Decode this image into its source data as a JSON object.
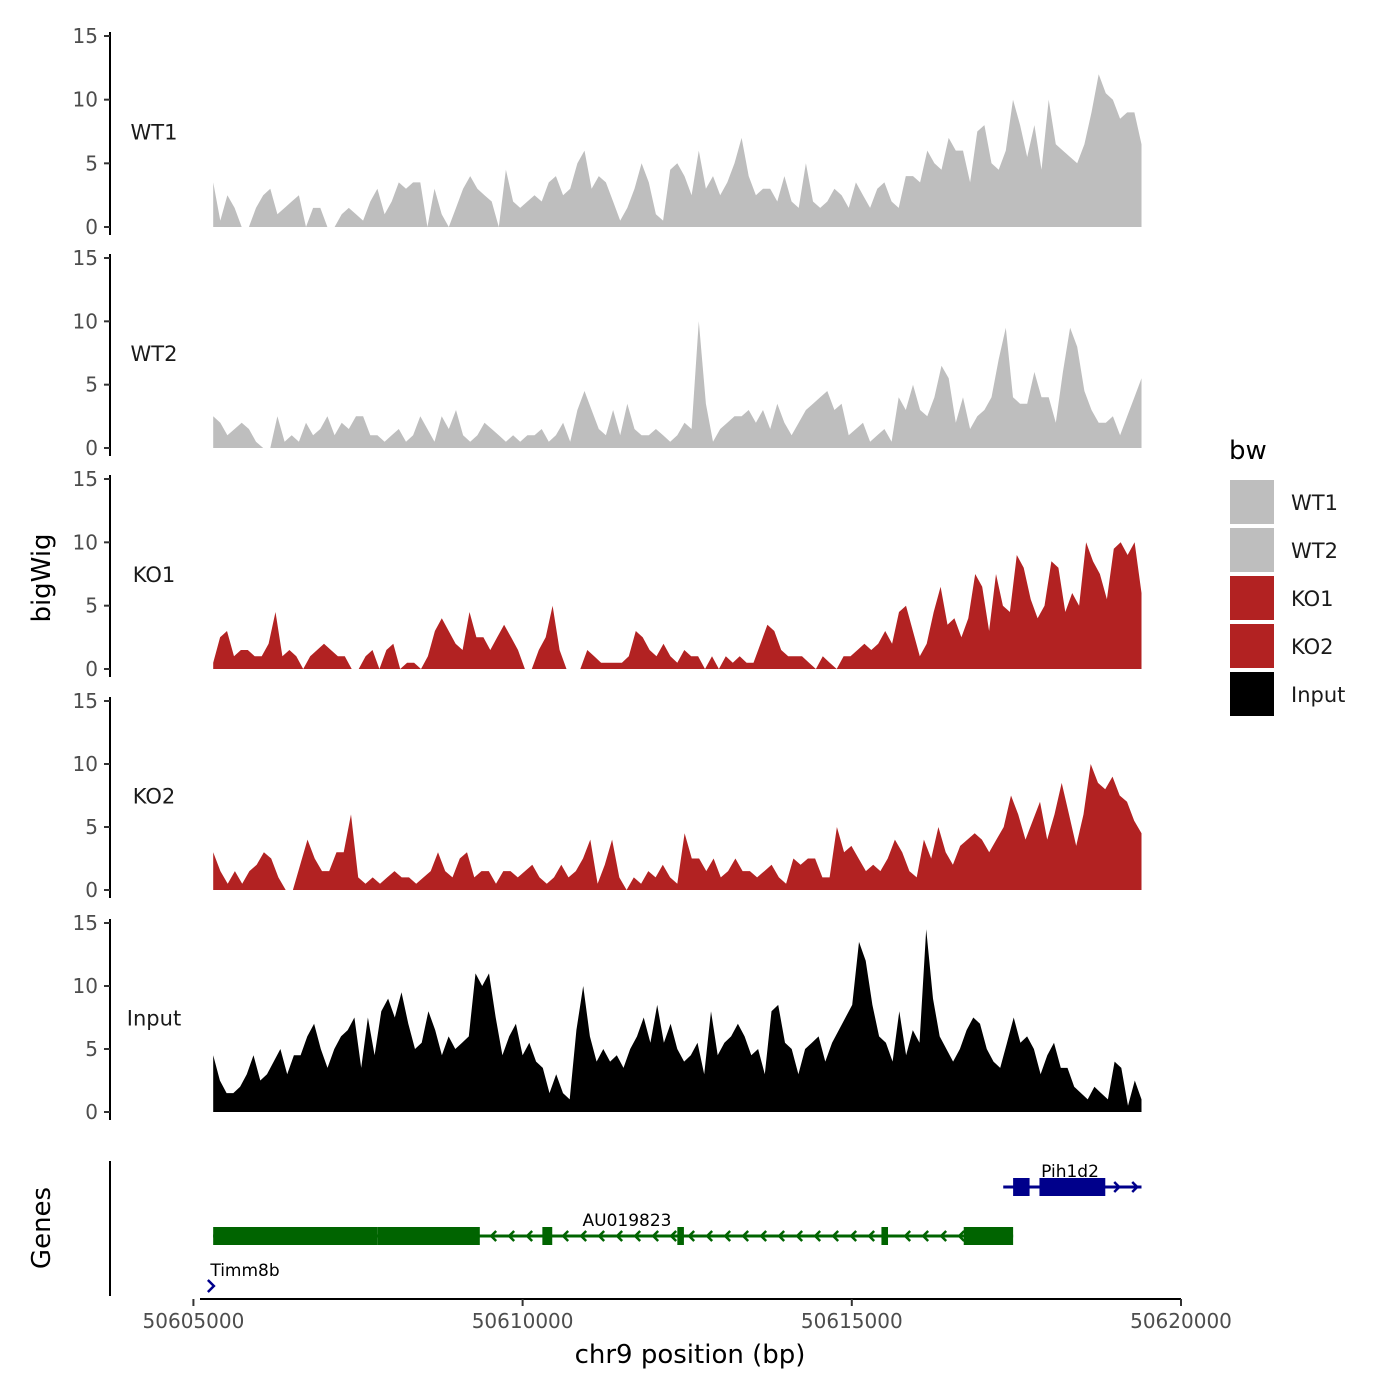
{
  "chart_data": {
    "type": "area",
    "ylabel_tracks": "bigWig",
    "ylabel_genes": "Genes",
    "xlabel": "chr9 position (bp)",
    "xlim": [
      50605100,
      50620000
    ],
    "x_range_data": [
      50605300,
      50619400
    ],
    "ylim": [
      0,
      15
    ],
    "y_ticks": [
      0,
      5,
      10,
      15
    ],
    "y_tick_labels": [
      "0",
      "5",
      "10",
      "15"
    ],
    "x_ticks": [
      50605000,
      50610000,
      50615000,
      50620000
    ],
    "x_tick_labels": [
      "50605000",
      "50610000",
      "50615000",
      "50620000"
    ],
    "legend": {
      "title": "bw",
      "position": "right",
      "entries": [
        {
          "name": "WT1",
          "color": "#BEBEBE"
        },
        {
          "name": "WT2",
          "color": "#BEBEBE"
        },
        {
          "name": "KO1",
          "color": "#B22222"
        },
        {
          "name": "KO2",
          "color": "#B22222"
        },
        {
          "name": "Input",
          "color": "#000000"
        }
      ]
    },
    "series": [
      {
        "name": "WT1",
        "color": "#BEBEBE",
        "values": [
          3.5,
          0.5,
          2.5,
          1.5,
          0,
          0,
          1.5,
          2.5,
          3,
          1,
          1.5,
          2,
          2.5,
          0,
          1.5,
          1.5,
          0,
          0,
          1,
          1.5,
          1,
          0.5,
          2,
          3,
          1,
          2,
          3.5,
          3,
          3.5,
          3.5,
          0,
          3,
          1,
          0,
          1.5,
          3,
          4,
          3,
          2.5,
          2,
          0,
          4.5,
          2,
          1.5,
          2,
          2.5,
          2,
          3.5,
          4,
          2.5,
          3,
          5,
          6,
          3,
          4,
          3.5,
          2,
          0.5,
          1.5,
          3,
          5,
          3.5,
          1,
          0.5,
          4.5,
          5,
          4,
          2.5,
          6,
          3,
          4,
          2.5,
          3.5,
          5,
          7,
          4,
          2.5,
          3,
          3,
          2,
          4,
          2,
          1.5,
          5,
          2,
          1.5,
          2,
          3,
          2.5,
          1.5,
          3.5,
          2.5,
          1.5,
          3,
          3.5,
          2,
          1.5,
          4,
          4,
          3.5,
          6,
          5,
          4.5,
          7,
          6,
          6,
          3.5,
          7.5,
          8,
          5,
          4.5,
          6,
          10,
          8,
          5.5,
          8,
          4.5,
          10,
          6.5,
          6,
          5.5,
          5,
          6.5,
          9,
          12,
          10.5,
          10,
          8.5,
          9,
          9,
          6.5
        ]
      },
      {
        "name": "WT2",
        "color": "#BEBEBE",
        "values": [
          2.5,
          2,
          1,
          1.5,
          2,
          1.5,
          0.5,
          0,
          0,
          2.5,
          0.5,
          1,
          0.5,
          2,
          1,
          1.5,
          2.5,
          1,
          2,
          1.5,
          2.5,
          2.5,
          1,
          1,
          0.5,
          1,
          1.5,
          0.5,
          1,
          2.5,
          1.5,
          0.5,
          2.5,
          1.5,
          3,
          1,
          0.5,
          1,
          2,
          1.5,
          1,
          0.5,
          1,
          0.5,
          1,
          1,
          1.5,
          0.5,
          1,
          2,
          0.5,
          3,
          4.5,
          3,
          1.5,
          1,
          3,
          1,
          3.5,
          1.5,
          1,
          1,
          1.5,
          1,
          0.5,
          1,
          2,
          1.5,
          10,
          3.5,
          0.5,
          1.5,
          2,
          2.5,
          2.5,
          3,
          2,
          3,
          1.5,
          3.5,
          2,
          1,
          2,
          3,
          3.5,
          4,
          4.5,
          3,
          3.5,
          1,
          1.5,
          2,
          0.5,
          1,
          1.5,
          0.5,
          4,
          3,
          5,
          3,
          2.5,
          4,
          6.5,
          5.5,
          2,
          4,
          1.5,
          2.5,
          3,
          4,
          7,
          9.5,
          4,
          3.5,
          3.5,
          6,
          4,
          4,
          2,
          6,
          9.5,
          8,
          4.5,
          3,
          2,
          2,
          2.5,
          1,
          2.5,
          4,
          5.5
        ]
      },
      {
        "name": "KO1",
        "color": "#B22222",
        "values": [
          0.5,
          2.5,
          3,
          1,
          1.5,
          1.5,
          1,
          1,
          2,
          4.5,
          1,
          1.5,
          1,
          0,
          1,
          1.5,
          2,
          1.5,
          1,
          1,
          0,
          0,
          1,
          1.5,
          0,
          1.5,
          2,
          0,
          0.5,
          0.5,
          0,
          1,
          3,
          4,
          3,
          2,
          1.5,
          4.5,
          2.5,
          2.5,
          1.5,
          2.5,
          3.5,
          2.5,
          1.5,
          0,
          0,
          1.5,
          2.5,
          5,
          1.5,
          0,
          0,
          0,
          1.5,
          1,
          0.5,
          0.5,
          0.5,
          0.5,
          1,
          3,
          2.5,
          1.5,
          1,
          2,
          1,
          0.5,
          1.5,
          1,
          1,
          0,
          1,
          0,
          1,
          0.5,
          1,
          0.5,
          0.5,
          2,
          3.5,
          3,
          1.5,
          1,
          1,
          1,
          0.5,
          0,
          1,
          0.5,
          0,
          1,
          1,
          1.5,
          2,
          1.5,
          2,
          3,
          2,
          4.5,
          5,
          3,
          1,
          2,
          4.5,
          6.5,
          3.5,
          4,
          2.5,
          4,
          7.5,
          6.5,
          3,
          7.5,
          5,
          4.5,
          9,
          8,
          5.5,
          4,
          5,
          8.5,
          8,
          4.5,
          6,
          5,
          10,
          8.5,
          7.5,
          5.5,
          9.5,
          10,
          9,
          10,
          6
        ]
      },
      {
        "name": "KO2",
        "color": "#B22222",
        "values": [
          3,
          1.5,
          0.5,
          1.5,
          0.5,
          1.5,
          2,
          3,
          2.5,
          1,
          0,
          0,
          2,
          4,
          2.5,
          1.5,
          1.5,
          3,
          3,
          6,
          1,
          0.5,
          1,
          0.5,
          1,
          1.5,
          1,
          1,
          0.5,
          1,
          1.5,
          3,
          1.5,
          1,
          2.5,
          3,
          1,
          1.5,
          1.5,
          0.5,
          1.5,
          1.5,
          1,
          1.5,
          2,
          1,
          0.5,
          1,
          2,
          1,
          1.5,
          2.5,
          4,
          0.5,
          2,
          4,
          1,
          0,
          1,
          0.5,
          1.5,
          1,
          2,
          1,
          0.5,
          4.5,
          2.5,
          2.5,
          1.5,
          2.5,
          1,
          1.5,
          2.5,
          1.5,
          1.5,
          1,
          1.5,
          2,
          1,
          0.5,
          2.5,
          2,
          2.5,
          2.5,
          1,
          1,
          5,
          3,
          3.5,
          2.5,
          1.5,
          2,
          1.5,
          2.5,
          4,
          3,
          1.5,
          1,
          4,
          2.5,
          5,
          3,
          2,
          3.5,
          4,
          4.5,
          4,
          3,
          4,
          5,
          7.5,
          6,
          4,
          5.5,
          7,
          4,
          6,
          8.5,
          6,
          3.5,
          6,
          10,
          8.5,
          8,
          9,
          7.5,
          7,
          5.5,
          4.5
        ]
      },
      {
        "name": "Input",
        "color": "#000000",
        "values": [
          4.5,
          2.5,
          1.5,
          1.5,
          2,
          3,
          4.5,
          2.5,
          3,
          4,
          5,
          3,
          4.5,
          4.5,
          6,
          7,
          5,
          3.5,
          5,
          6,
          6.5,
          7.5,
          3.5,
          7.5,
          4.5,
          8,
          9,
          7.5,
          9.5,
          7,
          5,
          5.5,
          8,
          6.5,
          4.5,
          6,
          5,
          5.5,
          6,
          11,
          10,
          11,
          7.5,
          4.5,
          6,
          7,
          4.5,
          5.5,
          4,
          3.5,
          1.5,
          3,
          1.5,
          1,
          6.5,
          10,
          6,
          4,
          5,
          4,
          4.5,
          3.5,
          5,
          6,
          7.5,
          5.5,
          8.5,
          5.5,
          7,
          5,
          4,
          4.5,
          5.5,
          3,
          8,
          4.5,
          5.5,
          6,
          7,
          6,
          4.5,
          5,
          3,
          8,
          8.5,
          5.5,
          5,
          3,
          5,
          5.5,
          6,
          4,
          5.5,
          6.5,
          7.5,
          8.5,
          13.5,
          12,
          8.5,
          6,
          5.5,
          4,
          8,
          4.5,
          6.5,
          5.5,
          14.5,
          9,
          6,
          5,
          4,
          5,
          6.5,
          7.5,
          7,
          5,
          4,
          3.5,
          5.5,
          7.5,
          5.5,
          6,
          5,
          3,
          4.5,
          5.5,
          3.5,
          3.5,
          2,
          1.5,
          1,
          2,
          1.5,
          1,
          4,
          3.5,
          0.5,
          2.5,
          1
        ]
      }
    ],
    "genes": [
      {
        "name": "Pih1d2",
        "color": "#00008B",
        "start": 50617300,
        "end": 50619400,
        "strand": "+",
        "exons": [
          [
            50617450,
            50617700
          ],
          [
            50617850,
            50618850
          ]
        ]
      },
      {
        "name": "AU019823",
        "color": "#006400",
        "start": 50605300,
        "end": 50617450,
        "strand": "-",
        "exons": [
          [
            50605300,
            50607800
          ],
          [
            50607800,
            50609350
          ],
          [
            50610300,
            50610450
          ],
          [
            50612350,
            50612450
          ],
          [
            50615450,
            50615550
          ],
          [
            50616700,
            50617450
          ]
        ]
      },
      {
        "name": "Timm8b",
        "color": "#00008B",
        "start": 50605250,
        "end": 50605350,
        "strand": "+",
        "exons": []
      }
    ]
  }
}
